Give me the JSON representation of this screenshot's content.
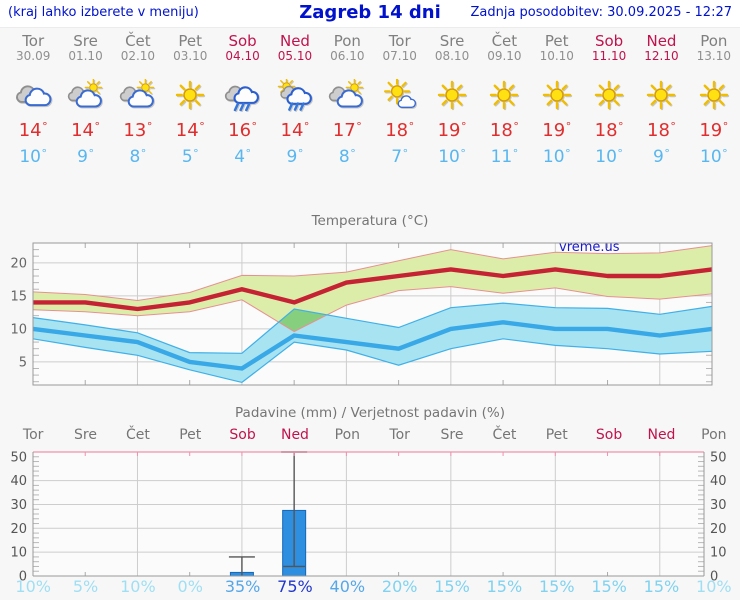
{
  "header": {
    "left_note": "(kraj lahko izberete v meniju)",
    "title": "Zagreb 14 dni",
    "updated": "Zadnja posodobitev: 30.09.2025 - 12:27"
  },
  "degree": "°",
  "watermark": "vreme.us",
  "days": [
    {
      "name": "Tor",
      "date": "30.09",
      "weekend": false,
      "icon": "cloudy",
      "tmax": "14",
      "tmin": "10",
      "prob": "10%",
      "prob_level": "low"
    },
    {
      "name": "Sre",
      "date": "01.10",
      "weekend": false,
      "icon": "partly-cloudy",
      "tmax": "14",
      "tmin": "9",
      "prob": "5%",
      "prob_level": "low"
    },
    {
      "name": "Čet",
      "date": "02.10",
      "weekend": false,
      "icon": "partly-cloudy",
      "tmax": "13",
      "tmin": "8",
      "prob": "10%",
      "prob_level": "low"
    },
    {
      "name": "Pet",
      "date": "03.10",
      "weekend": false,
      "icon": "sunny",
      "tmax": "14",
      "tmin": "5",
      "prob": "0%",
      "prob_level": "low"
    },
    {
      "name": "Sob",
      "date": "04.10",
      "weekend": true,
      "icon": "rain",
      "tmax": "16",
      "tmin": "4",
      "prob": "35%",
      "prob_level": "high"
    },
    {
      "name": "Ned",
      "date": "05.10",
      "weekend": true,
      "icon": "sun-rain",
      "tmax": "14",
      "tmin": "9",
      "prob": "75%",
      "prob_level": "very-high"
    },
    {
      "name": "Pon",
      "date": "06.10",
      "weekend": false,
      "icon": "partly-cloudy",
      "tmax": "17",
      "tmin": "8",
      "prob": "40%",
      "prob_level": "high"
    },
    {
      "name": "Tor",
      "date": "07.10",
      "weekend": false,
      "icon": "mostly-sunny",
      "tmax": "18",
      "tmin": "7",
      "prob": "20%",
      "prob_level": "mid"
    },
    {
      "name": "Sre",
      "date": "08.10",
      "weekend": false,
      "icon": "sunny",
      "tmax": "19",
      "tmin": "10",
      "prob": "15%",
      "prob_level": "mid"
    },
    {
      "name": "Čet",
      "date": "09.10",
      "weekend": false,
      "icon": "sunny",
      "tmax": "18",
      "tmin": "11",
      "prob": "15%",
      "prob_level": "mid"
    },
    {
      "name": "Pet",
      "date": "10.10",
      "weekend": false,
      "icon": "sunny",
      "tmax": "19",
      "tmin": "10",
      "prob": "15%",
      "prob_level": "mid"
    },
    {
      "name": "Sob",
      "date": "11.10",
      "weekend": true,
      "icon": "sunny",
      "tmax": "18",
      "tmin": "10",
      "prob": "15%",
      "prob_level": "mid"
    },
    {
      "name": "Ned",
      "date": "12.10",
      "weekend": true,
      "icon": "sunny",
      "tmax": "18",
      "tmin": "9",
      "prob": "15%",
      "prob_level": "mid"
    },
    {
      "name": "Pon",
      "date": "13.10",
      "weekend": false,
      "icon": "sunny",
      "tmax": "19",
      "tmin": "10",
      "prob": "10%",
      "prob_level": "low"
    }
  ],
  "chart_data": [
    {
      "type": "line",
      "title": "Temperatura (°C)",
      "categories": [
        "Tor",
        "Sre",
        "Čet",
        "Pet",
        "Sob",
        "Ned",
        "Pon",
        "Tor",
        "Sre",
        "Čet",
        "Pet",
        "Sob",
        "Ned",
        "Pon"
      ],
      "series": [
        {
          "name": "max temperature",
          "values": [
            14,
            14,
            13,
            14,
            16,
            14,
            17,
            18,
            19,
            18,
            19,
            18,
            18,
            19
          ]
        },
        {
          "name": "min temperature",
          "values": [
            10,
            9,
            8,
            5,
            4,
            9,
            8,
            7,
            10,
            11,
            10,
            10,
            9,
            10
          ]
        }
      ],
      "bands": [
        {
          "name": "max range",
          "upper": [
            15.6,
            15.2,
            14.3,
            15.5,
            18.1,
            18.0,
            18.6,
            20.3,
            22.0,
            20.6,
            21.6,
            21.4,
            21.5,
            22.6
          ],
          "lower": [
            12.9,
            12.6,
            12.0,
            12.6,
            14.4,
            9.6,
            13.6,
            15.8,
            16.4,
            15.4,
            16.2,
            14.9,
            14.5,
            15.3
          ]
        },
        {
          "name": "min range",
          "upper": [
            11.7,
            10.6,
            9.4,
            6.4,
            6.3,
            13.0,
            11.6,
            10.2,
            13.2,
            13.9,
            13.2,
            13.1,
            12.2,
            13.4
          ],
          "lower": [
            8.5,
            7.2,
            6.0,
            3.8,
            1.9,
            8.0,
            6.8,
            4.5,
            7.0,
            8.5,
            7.5,
            7.0,
            6.2,
            6.6
          ]
        }
      ],
      "ylim": [
        1.5,
        23
      ],
      "yticks": [
        5,
        10,
        15,
        20
      ],
      "grid": true,
      "legend": "none"
    },
    {
      "type": "bar",
      "title": "Padavine (mm) / Verjetnost padavin (%)",
      "categories": [
        "Tor",
        "Sre",
        "Čet",
        "Pet",
        "Sob",
        "Ned",
        "Pon",
        "Tor",
        "Sre",
        "Čet",
        "Pet",
        "Sob",
        "Ned",
        "Pon"
      ],
      "values": [
        0,
        0,
        0,
        0,
        1.5,
        27.5,
        0,
        0,
        0,
        0,
        0,
        0,
        0,
        0
      ],
      "whisker_low": [
        null,
        null,
        null,
        null,
        0,
        4,
        null,
        null,
        null,
        null,
        null,
        null,
        null,
        null
      ],
      "whisker_high": [
        null,
        null,
        null,
        null,
        8,
        52,
        null,
        null,
        null,
        null,
        null,
        null,
        null,
        null
      ],
      "probabilities_pct": [
        10,
        5,
        10,
        0,
        35,
        75,
        40,
        20,
        15,
        15,
        15,
        15,
        15,
        10
      ],
      "ylim": [
        0,
        52
      ],
      "yticks": [
        0,
        10,
        20,
        30,
        40,
        50
      ],
      "y_axis_sides": "both",
      "grid": true,
      "legend": "none"
    }
  ],
  "colors": {
    "header_text": "#0012cc",
    "weekday": "#7f7f7f",
    "date_color": "#8f8f8f",
    "weekend": "#c0134e",
    "tmax_text": "#e02e2e",
    "tmin_text": "#58b7f0",
    "temp_max_line": "#c52233",
    "temp_max_band": "#dcedaa",
    "temp_max_band_edge": "#e89090",
    "temp_min_line": "#38a8e6",
    "temp_min_band": "#a8e3f2",
    "temp_min_band_edge": "#3fb0e8",
    "band_overlap": "#86cf7f",
    "bar_fill": "#2e8ee0",
    "bar_edge": "#1668b8",
    "whisker": "#555555",
    "precip_top_axis": "#ef92ac",
    "prob_levels": {
      "low": "#9fdff4",
      "mid": "#7fd2f0",
      "high": "#55a7e9",
      "very-high": "#2137cd"
    }
  }
}
